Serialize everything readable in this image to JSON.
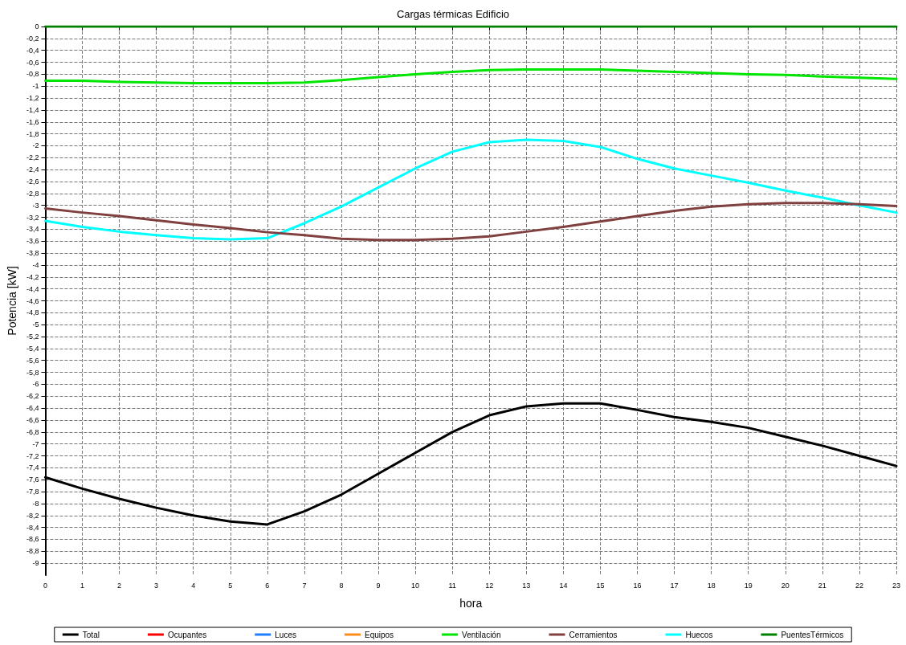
{
  "chart_data": {
    "type": "line",
    "title": "Cargas térmicas Edificio",
    "xlabel": "hora",
    "ylabel": "Potencia [kW]",
    "x": [
      0,
      1,
      2,
      3,
      4,
      5,
      6,
      7,
      8,
      9,
      10,
      11,
      12,
      13,
      14,
      15,
      16,
      17,
      18,
      19,
      20,
      21,
      22,
      23
    ],
    "xlim": [
      0,
      23
    ],
    "xticks": [
      0,
      1,
      2,
      3,
      4,
      5,
      6,
      7,
      8,
      9,
      10,
      11,
      12,
      13,
      14,
      15,
      16,
      17,
      18,
      19,
      20,
      21,
      22,
      23
    ],
    "ylim": [
      -9.2,
      0
    ],
    "yticks": [
      0,
      {
        "value": -0.2,
        "label": "-0,2"
      },
      {
        "value": -0.4,
        "label": "-0,4"
      },
      {
        "value": -0.6,
        "label": "-0,6"
      },
      {
        "value": -0.8,
        "label": "-0,8"
      },
      -1,
      {
        "value": -1.2,
        "label": "-1,2"
      },
      {
        "value": -1.4,
        "label": "-1,4"
      },
      {
        "value": -1.6,
        "label": "-1,6"
      },
      {
        "value": -1.8,
        "label": "-1,8"
      },
      -2,
      {
        "value": -2.2,
        "label": "-2,2"
      },
      {
        "value": -2.4,
        "label": "-2,4"
      },
      {
        "value": -2.6,
        "label": "-2,6"
      },
      {
        "value": -2.8,
        "label": "-2,8"
      },
      -3,
      {
        "value": -3.2,
        "label": "-3,2"
      },
      {
        "value": -3.4,
        "label": "-3,4"
      },
      {
        "value": -3.6,
        "label": "-3,6"
      },
      {
        "value": -3.8,
        "label": "-3,8"
      },
      -4,
      {
        "value": -4.2,
        "label": "-4,2"
      },
      {
        "value": -4.4,
        "label": "-4,4"
      },
      {
        "value": -4.6,
        "label": "-4,6"
      },
      {
        "value": -4.8,
        "label": "-4,8"
      },
      -5,
      {
        "value": -5.2,
        "label": "-5,2"
      },
      {
        "value": -5.4,
        "label": "-5,4"
      },
      {
        "value": -5.6,
        "label": "-5,6"
      },
      {
        "value": -5.8,
        "label": "-5,8"
      },
      -6,
      {
        "value": -6.2,
        "label": "-6,2"
      },
      {
        "value": -6.4,
        "label": "-6,4"
      },
      {
        "value": -6.6,
        "label": "-6,6"
      },
      {
        "value": -6.8,
        "label": "-6,8"
      },
      -7,
      {
        "value": -7.2,
        "label": "-7,2"
      },
      {
        "value": -7.4,
        "label": "-7,4"
      },
      {
        "value": -7.6,
        "label": "-7,6"
      },
      {
        "value": -7.8,
        "label": "-7,8"
      },
      -8,
      {
        "value": -8.2,
        "label": "-8,2"
      },
      {
        "value": -8.4,
        "label": "-8,4"
      },
      {
        "value": -8.6,
        "label": "-8,6"
      },
      {
        "value": -8.8,
        "label": "-8,8"
      },
      -9
    ],
    "grid": true,
    "legend": "bottom",
    "marker": "none",
    "line_style": "solid",
    "series": [
      {
        "name": "Total",
        "color": "#000000",
        "values": [
          -7.56,
          -7.75,
          -7.92,
          -8.07,
          -8.2,
          -8.3,
          -8.35,
          -8.13,
          -7.85,
          -7.5,
          -7.15,
          -6.8,
          -6.52,
          -6.37,
          -6.32,
          -6.32,
          -6.43,
          -6.55,
          -6.63,
          -6.73,
          -6.88,
          -7.03,
          -7.2,
          -7.37
        ]
      },
      {
        "name": "Ocupantes",
        "color": "#ff0000",
        "values": [
          null,
          null,
          null,
          null,
          null,
          null,
          null,
          null,
          null,
          null,
          null,
          null,
          null,
          null,
          null,
          null,
          null,
          null,
          null,
          null,
          null,
          null,
          null,
          null
        ]
      },
      {
        "name": "Luces",
        "color": "#1e80ff",
        "values": [
          null,
          null,
          null,
          null,
          null,
          null,
          null,
          null,
          null,
          null,
          null,
          null,
          null,
          null,
          null,
          null,
          null,
          null,
          null,
          null,
          null,
          null,
          null,
          null
        ]
      },
      {
        "name": "Equipos",
        "color": "#ff8c1a",
        "values": [
          null,
          null,
          null,
          null,
          null,
          null,
          null,
          null,
          null,
          null,
          null,
          null,
          null,
          null,
          null,
          null,
          null,
          null,
          null,
          null,
          null,
          null,
          null,
          null
        ]
      },
      {
        "name": "Ventilación",
        "color": "#00e600",
        "values": [
          -0.91,
          -0.91,
          -0.93,
          -0.94,
          -0.95,
          -0.95,
          -0.95,
          -0.94,
          -0.9,
          -0.85,
          -0.8,
          -0.76,
          -0.73,
          -0.72,
          -0.72,
          -0.72,
          -0.74,
          -0.76,
          -0.78,
          -0.8,
          -0.81,
          -0.84,
          -0.86,
          -0.88
        ]
      },
      {
        "name": "Cerramientos",
        "color": "#804040",
        "values": [
          -3.05,
          -3.12,
          -3.18,
          -3.25,
          -3.32,
          -3.38,
          -3.45,
          -3.5,
          -3.56,
          -3.58,
          -3.58,
          -3.56,
          -3.52,
          -3.44,
          -3.36,
          -3.27,
          -3.18,
          -3.09,
          -3.02,
          -2.98,
          -2.96,
          -2.96,
          -2.98,
          -3.01
        ]
      },
      {
        "name": "Huecos",
        "color": "#00ffff",
        "values": [
          -3.26,
          -3.36,
          -3.44,
          -3.5,
          -3.55,
          -3.57,
          -3.55,
          -3.3,
          -3.02,
          -2.7,
          -2.38,
          -2.1,
          -1.94,
          -1.9,
          -1.92,
          -2.02,
          -2.22,
          -2.38,
          -2.5,
          -2.62,
          -2.75,
          -2.87,
          -3.0,
          -3.12
        ]
      },
      {
        "name": "PuentesTérmicos",
        "color": "#008000",
        "values": [
          0,
          0,
          0,
          0,
          0,
          0,
          0,
          0,
          0,
          0,
          0,
          0,
          0,
          0,
          0,
          0,
          0,
          0,
          0,
          0,
          0,
          0,
          0,
          0
        ]
      }
    ]
  }
}
